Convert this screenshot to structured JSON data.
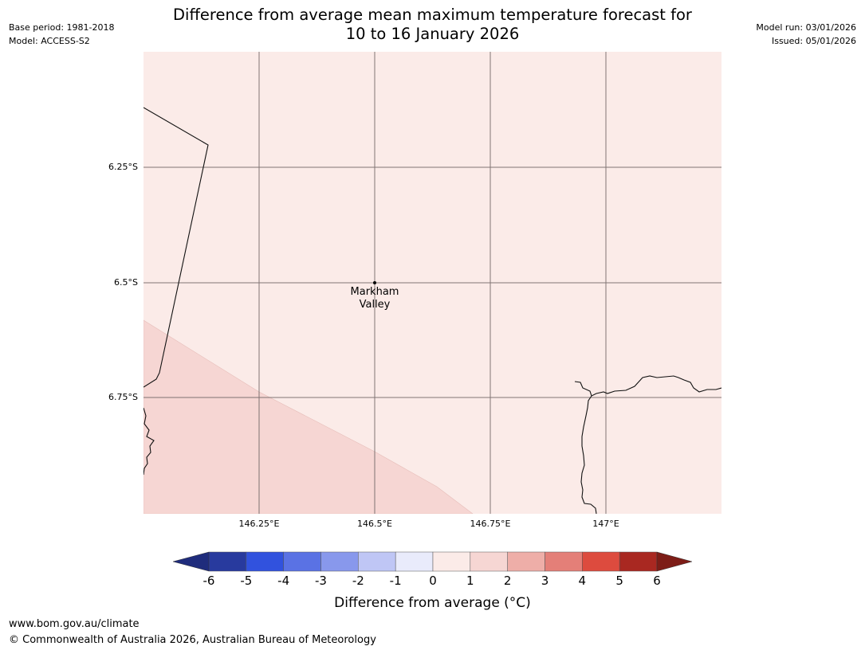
{
  "header": {
    "base_period": "Base period: 1981-2018",
    "model": "Model: ACCESS-S2",
    "title_line1": "Difference from average mean maximum temperature forecast for",
    "title_line2": "10 to 16 January 2026",
    "model_run": "Model run: 03/01/2026",
    "issued": "Issued: 05/01/2026"
  },
  "map": {
    "latitude_labels": [
      "6.25°S",
      "6.5°S",
      "6.75°S"
    ],
    "longitude_labels": [
      "146.25°E",
      "146.5°E",
      "146.75°E",
      "147°E"
    ],
    "place": {
      "line1": "Markham",
      "line2": "Valley"
    },
    "fill_main_color": "#fbebe8",
    "fill_secondary_color": "#f6d6d3"
  },
  "colorbar": {
    "ticks": [
      "-6",
      "-5",
      "-4",
      "-3",
      "-2",
      "-1",
      "0",
      "1",
      "2",
      "3",
      "4",
      "5",
      "6"
    ],
    "colors": [
      "#283a9e",
      "#3152de",
      "#5a72e4",
      "#8898ec",
      "#bfc6f5",
      "#e9ebfb",
      "#fbebe8",
      "#f6d6d3",
      "#eeaea8",
      "#e47f78",
      "#dd4b3e",
      "#a92821"
    ],
    "under_color": "#1f2c7c",
    "over_color": "#7d1d17",
    "label": "Difference from average (°C)"
  },
  "footer": {
    "url": "www.bom.gov.au/climate",
    "copyright": "© Commonwealth of Australia 2026, Australian Bureau of Meteorology"
  }
}
